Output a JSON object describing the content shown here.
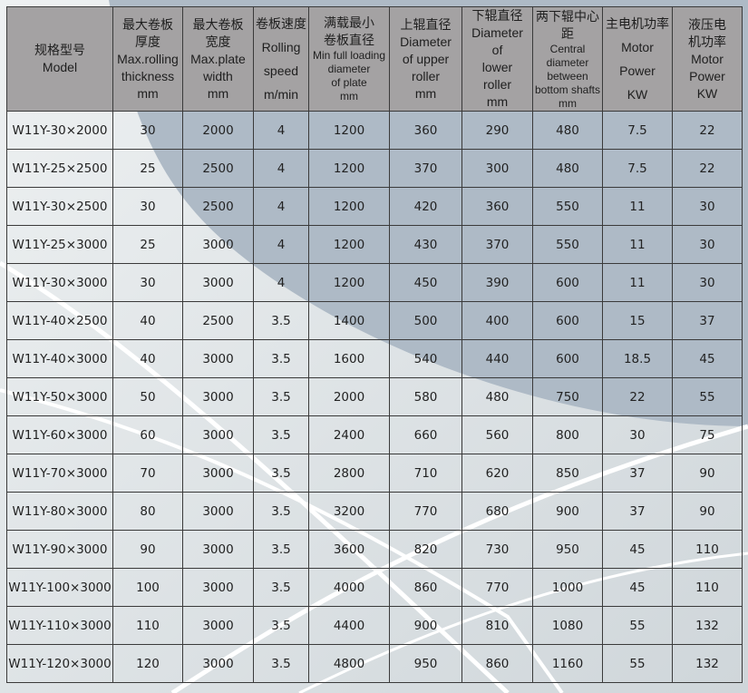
{
  "colors": {
    "header_bg": "#a4a2a3",
    "page_bg": "#d6dcdf",
    "accent_shape": "#aebac6",
    "border": "#3a3a3a"
  },
  "headers": [
    {
      "lines": [
        "规格型号",
        "Model"
      ]
    },
    {
      "lines": [
        "最大卷板",
        "厚度",
        "Max.rolling",
        "thickness",
        "mm"
      ]
    },
    {
      "lines": [
        "最大卷板",
        "宽度",
        "Max.plate",
        "width",
        "mm"
      ]
    },
    {
      "lines": [
        "卷板速度",
        "Rolling",
        "speed",
        "m/min"
      ]
    },
    {
      "lines": [
        "满载最小",
        "卷板直径",
        "Min full loading",
        "diameter",
        "of plate",
        "mm"
      ]
    },
    {
      "lines": [
        "上辊直径",
        "Diameter",
        "of upper",
        "roller",
        "mm"
      ]
    },
    {
      "lines": [
        "下辊直径",
        "Diameter",
        "of",
        "lower",
        "roller",
        "mm"
      ]
    },
    {
      "lines": [
        "两下辊中心距",
        "Central",
        "diameter",
        "between",
        "bottom shafts",
        "mm"
      ]
    },
    {
      "lines": [
        "主电机功率",
        "Motor",
        "Power",
        "KW"
      ]
    },
    {
      "lines": [
        "液压电",
        "机功率",
        "Motor",
        "Power",
        "KW"
      ]
    }
  ],
  "rows": [
    [
      "W11Y-30×2000",
      "30",
      "2000",
      "4",
      "1200",
      "360",
      "290",
      "480",
      "7.5",
      "22"
    ],
    [
      "W11Y-25×2500",
      "25",
      "2500",
      "4",
      "1200",
      "370",
      "300",
      "480",
      "7.5",
      "22"
    ],
    [
      "W11Y-30×2500",
      "30",
      "2500",
      "4",
      "1200",
      "420",
      "360",
      "550",
      "11",
      "30"
    ],
    [
      "W11Y-25×3000",
      "25",
      "3000",
      "4",
      "1200",
      "430",
      "370",
      "550",
      "11",
      "30"
    ],
    [
      "W11Y-30×3000",
      "30",
      "3000",
      "4",
      "1200",
      "450",
      "390",
      "600",
      "11",
      "30"
    ],
    [
      "W11Y-40×2500",
      "40",
      "2500",
      "3.5",
      "1400",
      "500",
      "400",
      "600",
      "15",
      "37"
    ],
    [
      "W11Y-40×3000",
      "40",
      "3000",
      "3.5",
      "1600",
      "540",
      "440",
      "600",
      "18.5",
      "45"
    ],
    [
      "W11Y-50×3000",
      "50",
      "3000",
      "3.5",
      "2000",
      "580",
      "480",
      "750",
      "22",
      "55"
    ],
    [
      "W11Y-60×3000",
      "60",
      "3000",
      "3.5",
      "2400",
      "660",
      "560",
      "800",
      "30",
      "75"
    ],
    [
      "W11Y-70×3000",
      "70",
      "3000",
      "3.5",
      "2800",
      "710",
      "620",
      "850",
      "37",
      "90"
    ],
    [
      "W11Y-80×3000",
      "80",
      "3000",
      "3.5",
      "3200",
      "770",
      "680",
      "900",
      "37",
      "90"
    ],
    [
      "W11Y-90×3000",
      "90",
      "3000",
      "3.5",
      "3600",
      "820",
      "730",
      "950",
      "45",
      "110"
    ],
    [
      "W11Y-100×3000",
      "100",
      "3000",
      "3.5",
      "4000",
      "860",
      "770",
      "1000",
      "45",
      "110"
    ],
    [
      "W11Y-110×3000",
      "110",
      "3000",
      "3.5",
      "4400",
      "900",
      "810",
      "1080",
      "55",
      "132"
    ],
    [
      "W11Y-120×3000",
      "120",
      "3000",
      "3.5",
      "4800",
      "950",
      "860",
      "1160",
      "55",
      "132"
    ]
  ]
}
